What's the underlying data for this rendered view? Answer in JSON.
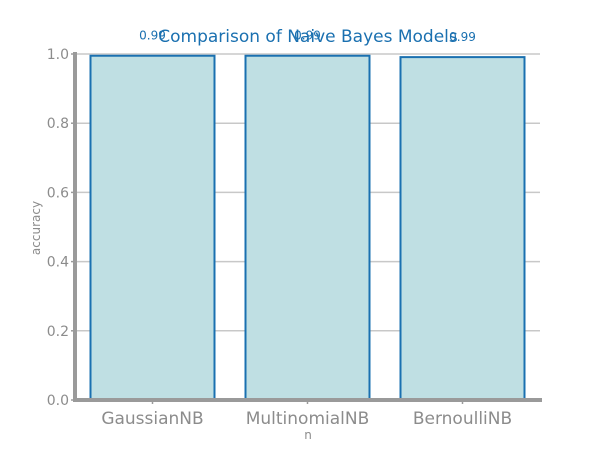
{
  "chart_data": {
    "type": "bar",
    "title": "Comparison of Naive Bayes Models",
    "xlabel": "n",
    "ylabel": "accuracy",
    "categories": [
      "GaussianNB",
      "MultinomialNB",
      "BernoulliNB"
    ],
    "values": [
      0.995,
      0.995,
      0.991
    ],
    "value_labels": [
      "0.99",
      "0.99",
      "0.99"
    ],
    "ylim": [
      0,
      1.0
    ],
    "yticks": [
      "0.0",
      "0.2",
      "0.4",
      "0.6",
      "0.8",
      "1.0"
    ],
    "grid": true,
    "legend": "none",
    "colors": {
      "bar_fill": "#bfdfe3",
      "bar_edge": "#1a70b0",
      "axis": "#9a9a9a",
      "grid": "#c8c8c8",
      "title": "#1a70b0"
    }
  }
}
